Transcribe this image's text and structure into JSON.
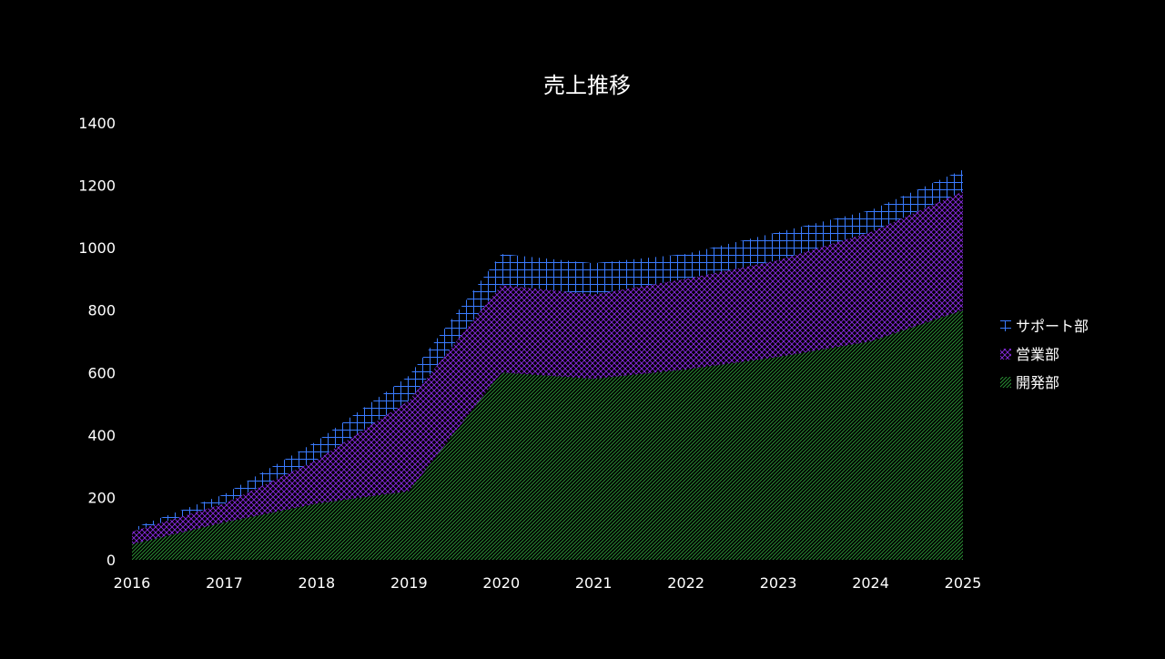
{
  "chart_data": {
    "type": "area",
    "stacked": true,
    "title": "売上推移",
    "xlabel": "",
    "ylabel": "",
    "ylim": [
      0,
      1400
    ],
    "yticks": [
      0,
      200,
      400,
      600,
      800,
      1000,
      1200,
      1400
    ],
    "x": [
      2016,
      2017,
      2018,
      2019,
      2020,
      2021,
      2022,
      2023,
      2024,
      2025
    ],
    "grid": false,
    "legend_position": "right",
    "series": [
      {
        "name": "開発部",
        "color": "#2e9e3a",
        "pattern": "diagonal-lines",
        "values": [
          50,
          120,
          180,
          220,
          600,
          580,
          610,
          650,
          700,
          800
        ]
      },
      {
        "name": "営業部",
        "color": "#8a2be2",
        "pattern": "diagonal-crosshatch",
        "values": [
          40,
          60,
          140,
          290,
          280,
          270,
          290,
          310,
          350,
          380
        ]
      },
      {
        "name": "サポート部",
        "color": "#3a7bff",
        "pattern": "grid-cross",
        "values": [
          10,
          30,
          60,
          80,
          100,
          100,
          80,
          90,
          70,
          70
        ]
      }
    ],
    "legend_order": [
      "サポート部",
      "営業部",
      "開発部"
    ],
    "background": "#000000",
    "text_color": "#ffffff"
  }
}
